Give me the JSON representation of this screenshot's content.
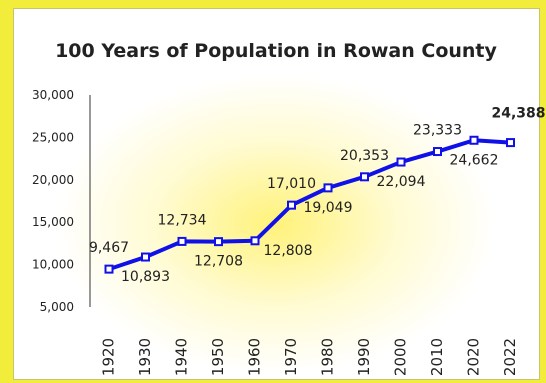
{
  "colors": {
    "frame": "#f2ec3a",
    "line": "#1010e8",
    "glow": "#fff79a",
    "text": "#222222"
  },
  "chart_data": {
    "type": "line",
    "title": "100 Years of Population in Rowan County",
    "xlabel": "",
    "ylabel": "",
    "categories": [
      "1920",
      "1930",
      "1940",
      "1950",
      "1960",
      "1970",
      "1980",
      "1990",
      "2000",
      "2010",
      "2020",
      "2022"
    ],
    "series": [
      {
        "values": [
          9467,
          10893,
          12734,
          12708,
          12808,
          17010,
          19049,
          20353,
          22094,
          23333,
          24662,
          24388
        ],
        "value_labels": [
          "9,467",
          "10,893",
          "12,734",
          "12,708",
          "12,808",
          "17,010",
          "19,049",
          "20,353",
          "22,094",
          "23,333",
          "24,662",
          "24,388"
        ]
      }
    ],
    "ylim": [
      5000,
      30000
    ],
    "yticks": [
      5000,
      10000,
      15000,
      20000,
      25000,
      30000
    ],
    "ytick_labels": [
      "5,000",
      "10,000",
      "15,000",
      "20,000",
      "25,000",
      "30,000"
    ],
    "grid": false,
    "legend": "none",
    "marker": "square"
  }
}
